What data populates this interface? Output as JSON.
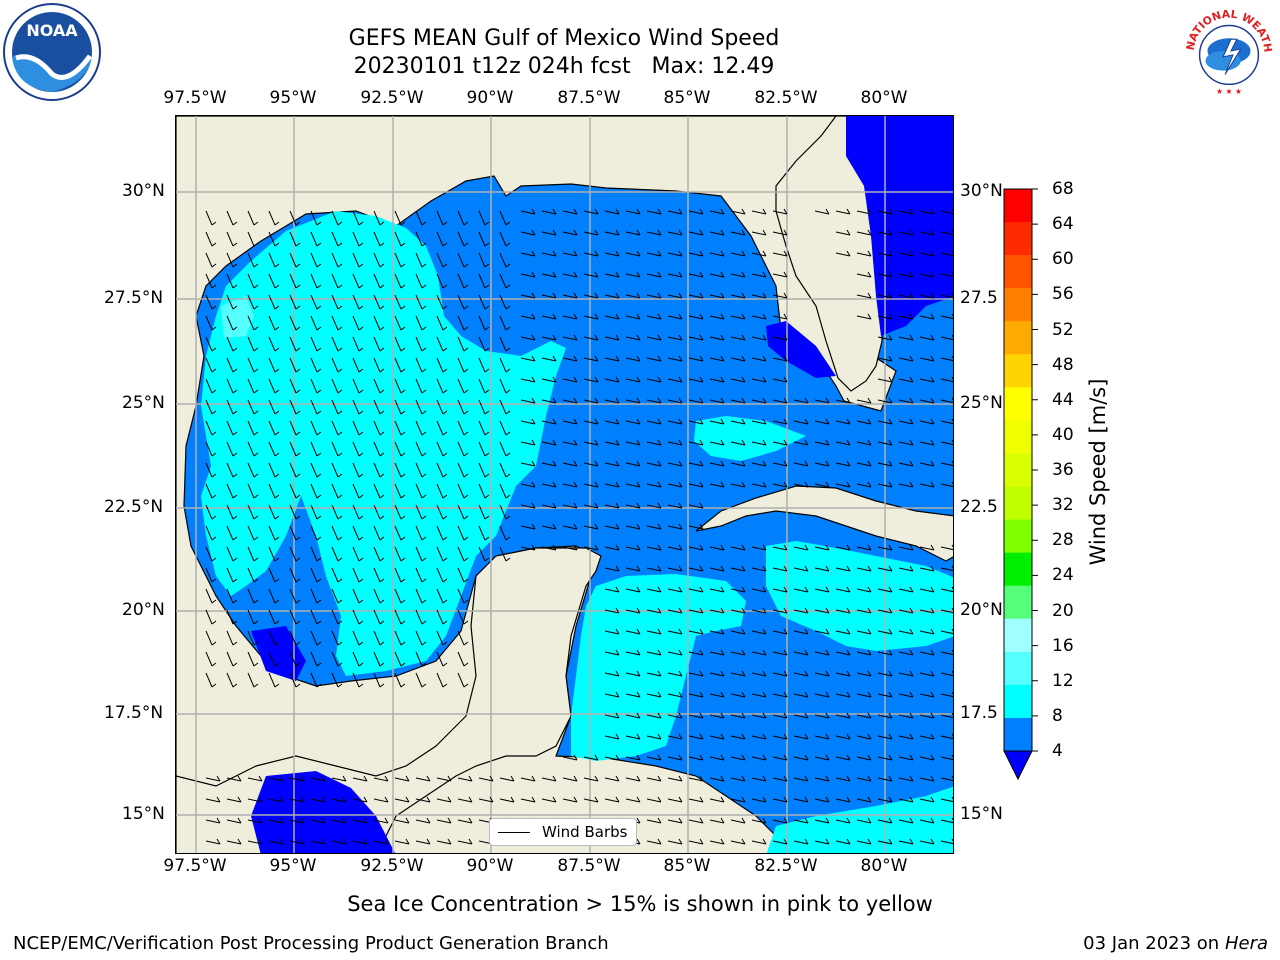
{
  "title_line1": "GEFS MEAN Gulf of Mexico Wind Speed",
  "title_line2": "20230101 t12z 024h fcst   Max: 12.49",
  "lon_labels": [
    "97.5°W",
    "95°W",
    "92.5°W",
    "90°W",
    "87.5°W",
    "85°W",
    "82.5°W",
    "80°W"
  ],
  "lat_labels_left": [
    "30°N",
    "27.5°N",
    "25°N",
    "22.5°N",
    "20°N",
    "17.5°N",
    "15°N"
  ],
  "lat_labels_right": [
    "30°N",
    "27.5",
    "25°N",
    "22.5",
    "20°N",
    "17.5",
    "15°N"
  ],
  "colorbar": {
    "label": "Wind Speed [m/s]",
    "ticks": [
      "68",
      "64",
      "60",
      "56",
      "52",
      "48",
      "44",
      "40",
      "36",
      "32",
      "28",
      "24",
      "20",
      "16",
      "12",
      "8",
      "4"
    ],
    "colors": [
      "#ff0000",
      "#ff2a00",
      "#ff5500",
      "#ff8000",
      "#ffaa00",
      "#ffd400",
      "#ffff00",
      "#f0ff00",
      "#d9ff00",
      "#c0ff00",
      "#80ff00",
      "#00ee00",
      "#55ff7a",
      "#a0ffff",
      "#55ffff",
      "#00ffff",
      "#0080ff"
    ],
    "under_color": "#0000ff"
  },
  "legend_label": "Wind Barbs",
  "subtitle": "Sea Ice Concentration > 15% is shown in pink to yellow",
  "footer_left": "NCEP/EMC/Verification Post Processing Product Generation Branch",
  "footer_date": "03 Jan 2023 on ",
  "footer_machine": "Hera",
  "noaa_logo_text": "NOAA",
  "nws_logo_text": "NATIONAL WEATHER SERVICE",
  "colors": {
    "land": "#efeedc",
    "wind_4_8": "#0080ff",
    "wind_8_12": "#00ffff",
    "wind_12_16": "#55ffff",
    "wind_below_4": "#0000ff",
    "grid": "#b0b0b0"
  }
}
